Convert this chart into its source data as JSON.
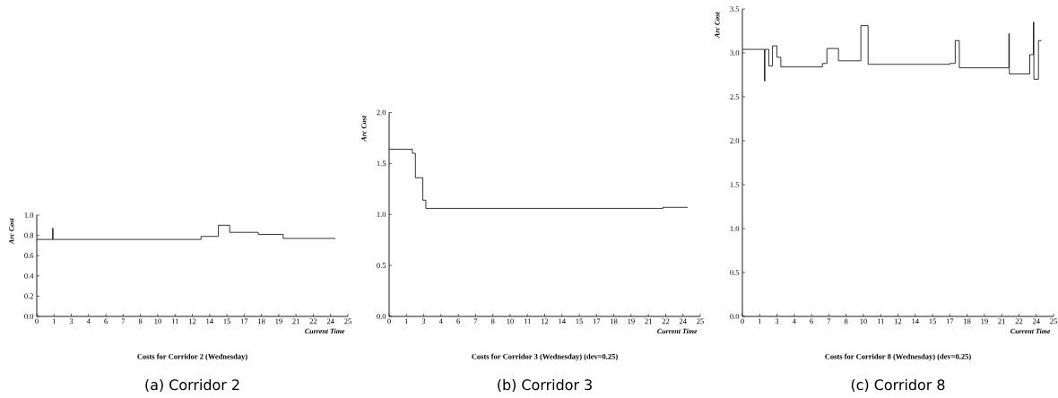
{
  "chart_data": [
    {
      "type": "step",
      "title": "Costs for Corridor 2 (Wednesday)",
      "xlabel": "Current Time",
      "ylabel": "Arc Cost",
      "annotations": [
        "(a) Corridor 2"
      ],
      "x": [
        0,
        1.27,
        1.31,
        13.2,
        14.6,
        15.5,
        17.8,
        19.8,
        24.0
      ],
      "values": [
        0.76,
        0.87,
        0.76,
        0.79,
        0.9,
        0.83,
        0.81,
        0.77,
        0.77
      ],
      "color": "#000000",
      "xlim": [
        0,
        25
      ],
      "ylim": [
        0,
        1.0
      ],
      "xticks": [
        {
          "value": 0,
          "label": "0"
        },
        {
          "value": 1.3889,
          "label": "1"
        },
        {
          "value": 2.7778,
          "label": "3"
        },
        {
          "value": 4.1667,
          "label": "4"
        },
        {
          "value": 5.5556,
          "label": "6"
        },
        {
          "value": 6.9444,
          "label": "7"
        },
        {
          "value": 8.3333,
          "label": "8"
        },
        {
          "value": 9.7222,
          "label": "10"
        },
        {
          "value": 11.1111,
          "label": "11"
        },
        {
          "value": 12.5,
          "label": "12"
        },
        {
          "value": 13.8889,
          "label": "14"
        },
        {
          "value": 15.2778,
          "label": "15"
        },
        {
          "value": 16.6667,
          "label": "17"
        },
        {
          "value": 18.0556,
          "label": "18"
        },
        {
          "value": 19.4444,
          "label": "19"
        },
        {
          "value": 20.8333,
          "label": "21"
        },
        {
          "value": 22.2222,
          "label": "22"
        },
        {
          "value": 23.6111,
          "label": "24"
        },
        {
          "value": 25,
          "label": "25"
        }
      ],
      "yticks": [
        {
          "value": 0,
          "label": "0.0"
        },
        {
          "value": 0.2,
          "label": "0.2"
        },
        {
          "value": 0.4,
          "label": "0.4"
        },
        {
          "value": 0.6,
          "label": "0.6"
        },
        {
          "value": 0.8,
          "label": "0.8"
        },
        {
          "value": 1.0,
          "label": "1.0"
        }
      ]
    },
    {
      "type": "step",
      "title": "Costs for Corridor 3 (Wednesday) (dev=0.25)",
      "xlabel": "Current Time",
      "ylabel": "Arc Cost",
      "annotations": [
        "(b) Corridor 3"
      ],
      "x": [
        0,
        1.87,
        2.11,
        2.71,
        2.95,
        22.0,
        24.0
      ],
      "values": [
        1.64,
        1.6,
        1.36,
        1.14,
        1.06,
        1.07,
        1.07
      ],
      "color": "#000000",
      "xlim": [
        0,
        25
      ],
      "ylim": [
        0,
        2.0
      ],
      "xticks": [
        {
          "value": 0,
          "label": "0"
        },
        {
          "value": 1.3889,
          "label": "1"
        },
        {
          "value": 2.7778,
          "label": "3"
        },
        {
          "value": 4.1667,
          "label": "4"
        },
        {
          "value": 5.5556,
          "label": "6"
        },
        {
          "value": 6.9444,
          "label": "7"
        },
        {
          "value": 8.3333,
          "label": "8"
        },
        {
          "value": 9.7222,
          "label": "10"
        },
        {
          "value": 11.1111,
          "label": "11"
        },
        {
          "value": 12.5,
          "label": "12"
        },
        {
          "value": 13.8889,
          "label": "14"
        },
        {
          "value": 15.2778,
          "label": "15"
        },
        {
          "value": 16.6667,
          "label": "17"
        },
        {
          "value": 18.0556,
          "label": "18"
        },
        {
          "value": 19.4444,
          "label": "19"
        },
        {
          "value": 20.8333,
          "label": "21"
        },
        {
          "value": 22.2222,
          "label": "22"
        },
        {
          "value": 23.6111,
          "label": "24"
        },
        {
          "value": 25,
          "label": "25"
        }
      ],
      "yticks": [
        {
          "value": 0,
          "label": "0.0"
        },
        {
          "value": 0.5,
          "label": "0.5"
        },
        {
          "value": 1.0,
          "label": "1.0"
        },
        {
          "value": 1.5,
          "label": "1.5"
        },
        {
          "value": 2.0,
          "label": "2.0"
        }
      ]
    },
    {
      "type": "step",
      "title": "Costs for Corridor 8 (Wednesday) (dev=0.25)",
      "xlabel": "Current Time",
      "ylabel": "Arc Cost",
      "annotations": [
        "(c) Corridor 8"
      ],
      "x": [
        0,
        1.77,
        1.81,
        2.13,
        2.42,
        2.78,
        3.09,
        6.43,
        6.79,
        7.72,
        9.52,
        10.1,
        16.67,
        17.1,
        17.43,
        21.41,
        21.45,
        23.09,
        23.38,
        23.42,
        23.79,
        24.03
      ],
      "values": [
        3.04,
        2.68,
        3.04,
        2.85,
        3.08,
        2.95,
        2.84,
        2.88,
        3.05,
        2.91,
        3.31,
        2.87,
        2.88,
        3.14,
        2.83,
        3.22,
        2.76,
        2.98,
        3.35,
        2.7,
        3.14,
        3.14
      ],
      "color": "#000000",
      "xlim": [
        0,
        25
      ],
      "ylim": [
        0,
        3.5
      ],
      "xticks": [
        {
          "value": 0,
          "label": "0"
        },
        {
          "value": 1.3889,
          "label": "1"
        },
        {
          "value": 2.7778,
          "label": "3"
        },
        {
          "value": 4.1667,
          "label": "4"
        },
        {
          "value": 5.5556,
          "label": "6"
        },
        {
          "value": 6.9444,
          "label": "7"
        },
        {
          "value": 8.3333,
          "label": "8"
        },
        {
          "value": 9.7222,
          "label": "10"
        },
        {
          "value": 11.1111,
          "label": "11"
        },
        {
          "value": 12.5,
          "label": "12"
        },
        {
          "value": 13.8889,
          "label": "14"
        },
        {
          "value": 15.2778,
          "label": "15"
        },
        {
          "value": 16.6667,
          "label": "17"
        },
        {
          "value": 18.0556,
          "label": "18"
        },
        {
          "value": 19.4444,
          "label": "19"
        },
        {
          "value": 20.8333,
          "label": "21"
        },
        {
          "value": 22.2222,
          "label": "22"
        },
        {
          "value": 23.6111,
          "label": "24"
        },
        {
          "value": 25,
          "label": "25"
        }
      ],
      "yticks": [
        {
          "value": 0,
          "label": "0.0"
        },
        {
          "value": 0.5,
          "label": "0.5"
        },
        {
          "value": 1.0,
          "label": "1.0"
        },
        {
          "value": 1.5,
          "label": "1.5"
        },
        {
          "value": 2.0,
          "label": "2.0"
        },
        {
          "value": 2.5,
          "label": "2.5"
        },
        {
          "value": 3.0,
          "label": "3.0"
        },
        {
          "value": 3.5,
          "label": "3.5"
        }
      ]
    }
  ]
}
